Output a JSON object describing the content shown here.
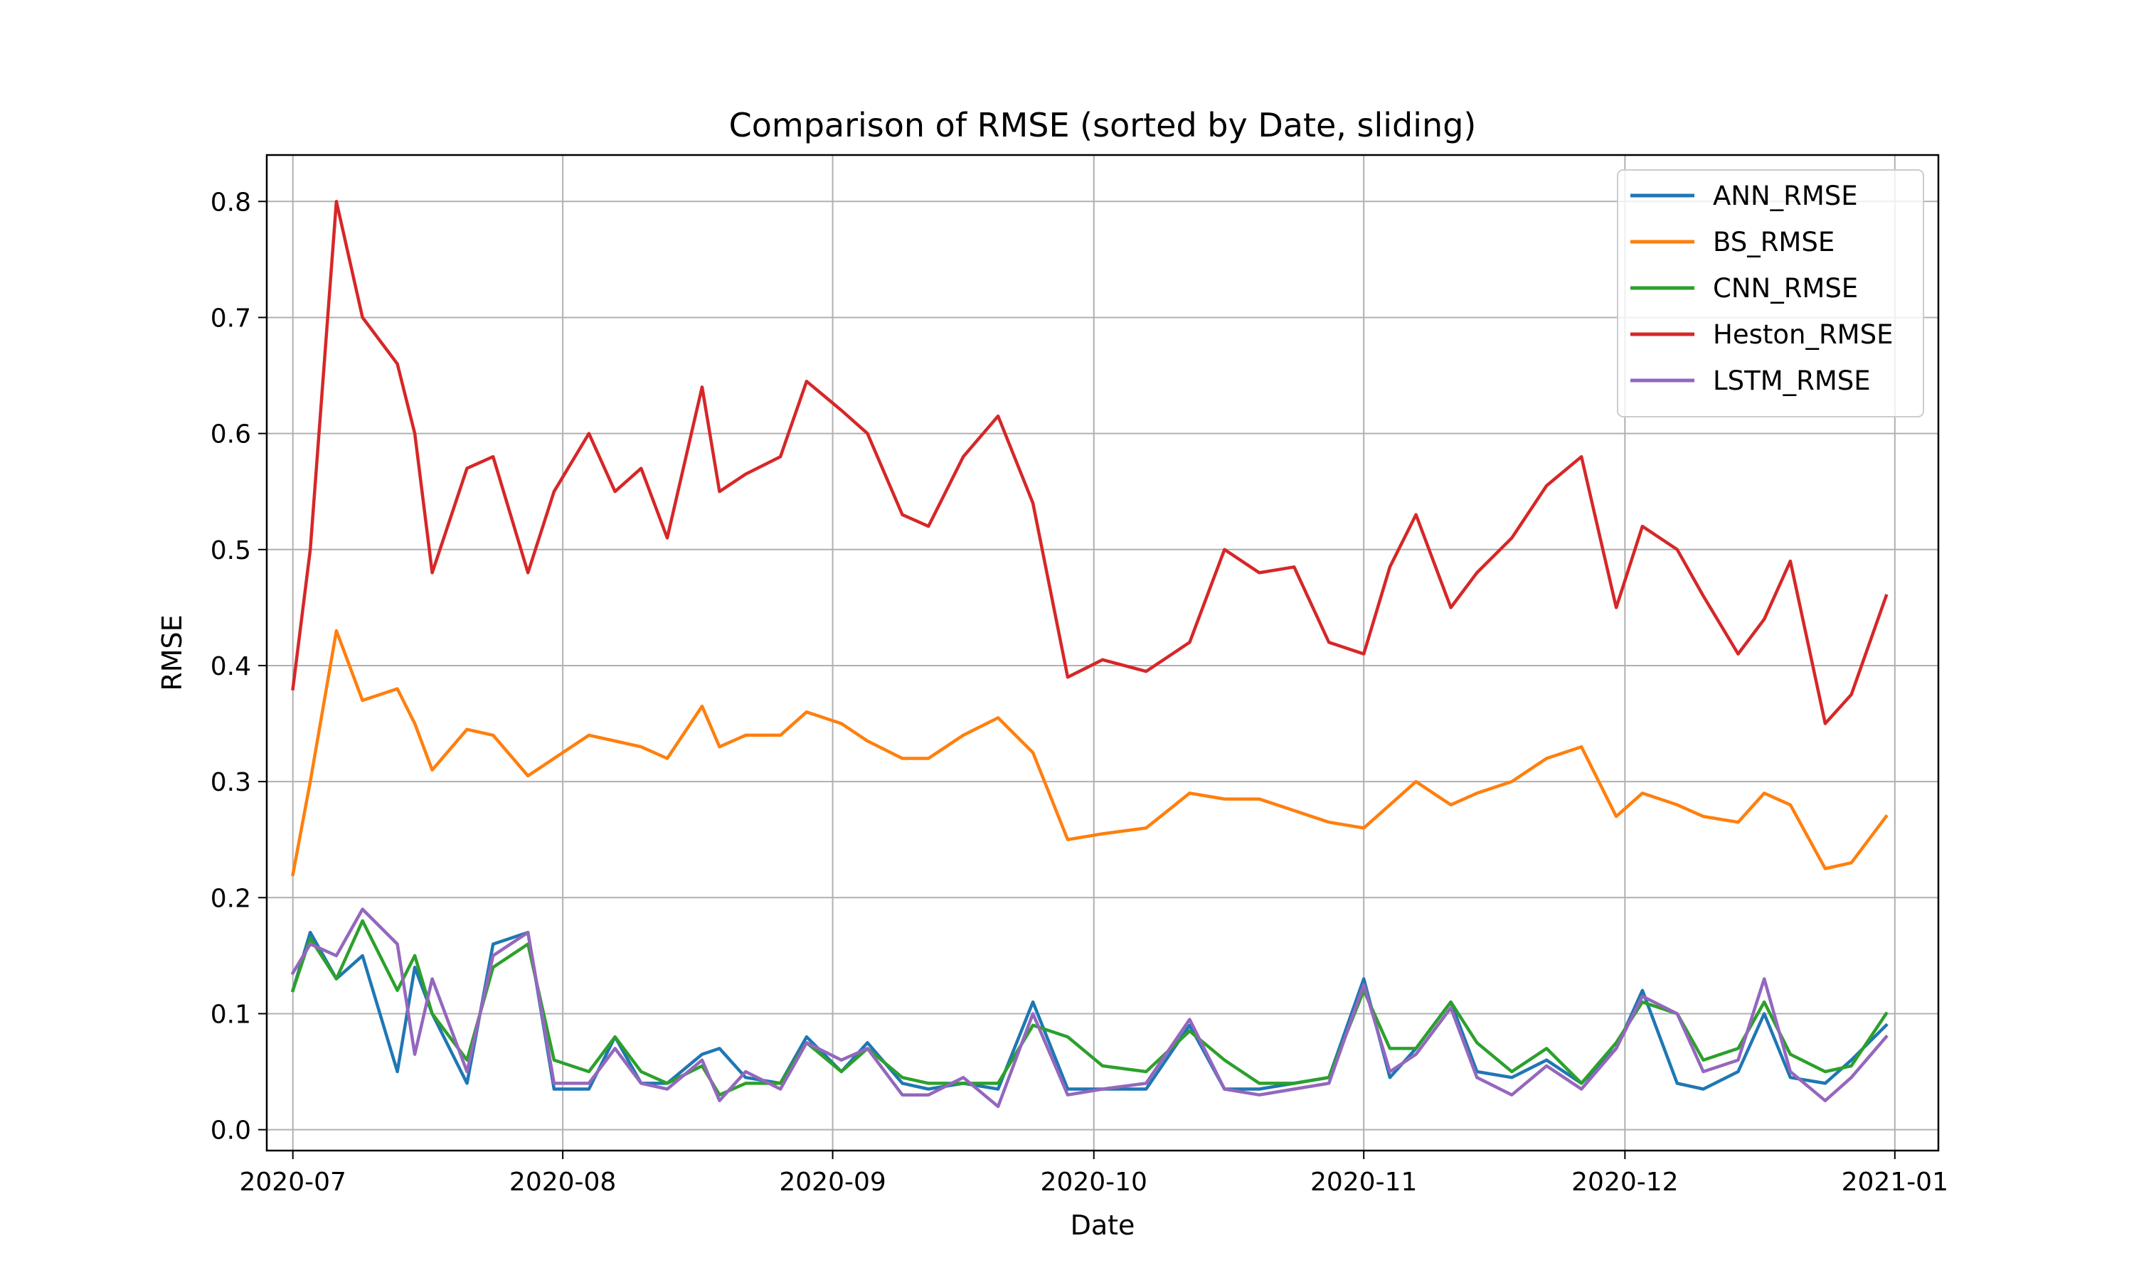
{
  "chart_data": {
    "type": "line",
    "title": "Comparison of RMSE (sorted by Date, sliding)",
    "xlabel": "Date",
    "ylabel": "RMSE",
    "x_ticks": [
      "2020-07",
      "2020-08",
      "2020-09",
      "2020-10",
      "2020-11",
      "2020-12",
      "2021-01"
    ],
    "y_ticks": [
      "0.0",
      "0.1",
      "0.2",
      "0.3",
      "0.4",
      "0.5",
      "0.6",
      "0.7",
      "0.8"
    ],
    "xlim": [
      "2020-06-28",
      "2021-01-06"
    ],
    "ylim": [
      -0.018,
      0.84
    ],
    "grid": true,
    "legend_position": "top-right",
    "x": [
      "2020-07-01",
      "2020-07-03",
      "2020-07-06",
      "2020-07-09",
      "2020-07-13",
      "2020-07-15",
      "2020-07-17",
      "2020-07-21",
      "2020-07-24",
      "2020-07-28",
      "2020-07-31",
      "2020-08-04",
      "2020-08-07",
      "2020-08-10",
      "2020-08-13",
      "2020-08-17",
      "2020-08-19",
      "2020-08-22",
      "2020-08-26",
      "2020-08-29",
      "2020-09-02",
      "2020-09-05",
      "2020-09-09",
      "2020-09-12",
      "2020-09-16",
      "2020-09-20",
      "2020-09-24",
      "2020-09-28",
      "2020-10-02",
      "2020-10-07",
      "2020-10-12",
      "2020-10-16",
      "2020-10-20",
      "2020-10-24",
      "2020-10-28",
      "2020-11-01",
      "2020-11-04",
      "2020-11-07",
      "2020-11-11",
      "2020-11-14",
      "2020-11-18",
      "2020-11-22",
      "2020-11-26",
      "2020-11-30",
      "2020-12-03",
      "2020-12-07",
      "2020-12-10",
      "2020-12-14",
      "2020-12-17",
      "2020-12-20",
      "2020-12-24",
      "2020-12-27",
      "2020-12-31"
    ],
    "series": [
      {
        "name": "ANN_RMSE",
        "color": "#1f77b4",
        "values": [
          0.12,
          0.17,
          0.13,
          0.15,
          0.05,
          0.14,
          0.1,
          0.04,
          0.16,
          0.17,
          0.035,
          0.035,
          0.08,
          0.04,
          0.04,
          0.065,
          0.07,
          0.045,
          0.04,
          0.08,
          0.05,
          0.075,
          0.04,
          0.035,
          0.04,
          0.035,
          0.11,
          0.035,
          0.035,
          0.035,
          0.09,
          0.035,
          0.035,
          0.04,
          0.045,
          0.13,
          0.045,
          0.07,
          0.11,
          0.05,
          0.045,
          0.06,
          0.04,
          0.07,
          0.12,
          0.04,
          0.035,
          0.05,
          0.1,
          0.045,
          0.04,
          0.06,
          0.09
        ]
      },
      {
        "name": "BS_RMSE",
        "color": "#ff7f0e",
        "values": [
          0.22,
          0.3,
          0.43,
          0.37,
          0.38,
          0.35,
          0.31,
          0.345,
          0.34,
          0.305,
          0.32,
          0.34,
          0.335,
          0.33,
          0.32,
          0.365,
          0.33,
          0.34,
          0.34,
          0.36,
          0.35,
          0.335,
          0.32,
          0.32,
          0.34,
          0.355,
          0.325,
          0.25,
          0.255,
          0.26,
          0.29,
          0.285,
          0.285,
          0.275,
          0.265,
          0.26,
          0.28,
          0.3,
          0.28,
          0.29,
          0.3,
          0.32,
          0.33,
          0.27,
          0.29,
          0.28,
          0.27,
          0.265,
          0.29,
          0.28,
          0.225,
          0.23,
          0.27
        ]
      },
      {
        "name": "CNN_RMSE",
        "color": "#2ca02c",
        "values": [
          0.12,
          0.165,
          0.13,
          0.18,
          0.12,
          0.15,
          0.1,
          0.06,
          0.14,
          0.16,
          0.06,
          0.05,
          0.08,
          0.05,
          0.04,
          0.055,
          0.03,
          0.04,
          0.04,
          0.075,
          0.05,
          0.07,
          0.045,
          0.04,
          0.04,
          0.04,
          0.09,
          0.08,
          0.055,
          0.05,
          0.085,
          0.06,
          0.04,
          0.04,
          0.045,
          0.12,
          0.07,
          0.07,
          0.11,
          0.075,
          0.05,
          0.07,
          0.04,
          0.075,
          0.11,
          0.1,
          0.06,
          0.07,
          0.11,
          0.065,
          0.05,
          0.055,
          0.1
        ]
      },
      {
        "name": "Heston_RMSE",
        "color": "#d62728",
        "values": [
          0.38,
          0.5,
          0.8,
          0.7,
          0.66,
          0.6,
          0.48,
          0.57,
          0.58,
          0.48,
          0.55,
          0.6,
          0.55,
          0.57,
          0.51,
          0.64,
          0.55,
          0.565,
          0.58,
          0.645,
          0.62,
          0.6,
          0.53,
          0.52,
          0.58,
          0.615,
          0.54,
          0.39,
          0.405,
          0.395,
          0.42,
          0.5,
          0.48,
          0.485,
          0.42,
          0.41,
          0.485,
          0.53,
          0.45,
          0.48,
          0.51,
          0.555,
          0.58,
          0.45,
          0.52,
          0.5,
          0.46,
          0.41,
          0.44,
          0.49,
          0.35,
          0.375,
          0.46
        ]
      },
      {
        "name": "LSTM_RMSE",
        "color": "#9467bd",
        "values": [
          0.135,
          0.16,
          0.15,
          0.19,
          0.16,
          0.065,
          0.13,
          0.05,
          0.15,
          0.17,
          0.04,
          0.04,
          0.07,
          0.04,
          0.035,
          0.06,
          0.025,
          0.05,
          0.035,
          0.075,
          0.06,
          0.07,
          0.03,
          0.03,
          0.045,
          0.02,
          0.1,
          0.03,
          0.035,
          0.04,
          0.095,
          0.035,
          0.03,
          0.035,
          0.04,
          0.125,
          0.05,
          0.065,
          0.105,
          0.045,
          0.03,
          0.055,
          0.035,
          0.07,
          0.115,
          0.1,
          0.05,
          0.06,
          0.13,
          0.05,
          0.025,
          0.045,
          0.08
        ]
      }
    ]
  }
}
